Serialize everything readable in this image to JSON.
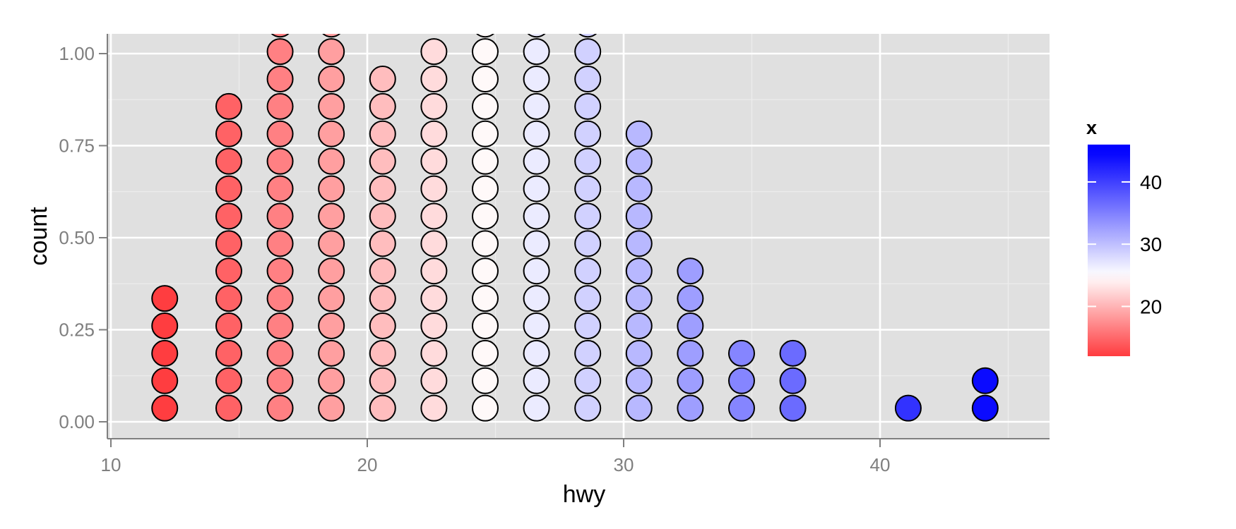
{
  "chart_data": {
    "type": "scatter",
    "subtype": "dotplot",
    "xlabel": "hwy",
    "ylabel": "count",
    "xlim": [
      10,
      46
    ],
    "ylim": [
      0,
      1.03
    ],
    "x_ticks": [
      10,
      20,
      30,
      40
    ],
    "x_tick_labels": [
      "10",
      "20",
      "30",
      "40"
    ],
    "y_ticks": [
      0,
      0.25,
      0.5,
      0.75,
      1.0
    ],
    "y_tick_labels": [
      "0.00",
      "0.25",
      "0.50",
      "0.75",
      "1.00"
    ],
    "grid": true,
    "stack_step": 0.0745,
    "stack_base": 0.037,
    "stacks": [
      {
        "x": 12.1,
        "count": 5
      },
      {
        "x": 14.6,
        "count": 12
      },
      {
        "x": 16.6,
        "count": 15
      },
      {
        "x": 18.6,
        "count": 15
      },
      {
        "x": 20.6,
        "count": 13
      },
      {
        "x": 22.6,
        "count": 14
      },
      {
        "x": 24.6,
        "count": 15
      },
      {
        "x": 26.6,
        "count": 15
      },
      {
        "x": 28.6,
        "count": 15
      },
      {
        "x": 30.6,
        "count": 11
      },
      {
        "x": 32.6,
        "count": 6
      },
      {
        "x": 34.6,
        "count": 3
      },
      {
        "x": 36.6,
        "count": 3
      },
      {
        "x": 41.1,
        "count": 1
      },
      {
        "x": 44.1,
        "count": 2
      }
    ],
    "color_scale": {
      "title": "x",
      "low": "#ff3b3f",
      "mid": "#ffffff",
      "high": "#0000ff",
      "domain": [
        12,
        25,
        45
      ],
      "labels": [
        "20",
        "30",
        "40"
      ],
      "label_values": [
        20,
        30,
        40
      ],
      "legend_range": [
        12,
        46
      ]
    },
    "panel_color": "#e0e0e0",
    "dot_stroke": "#000000"
  }
}
